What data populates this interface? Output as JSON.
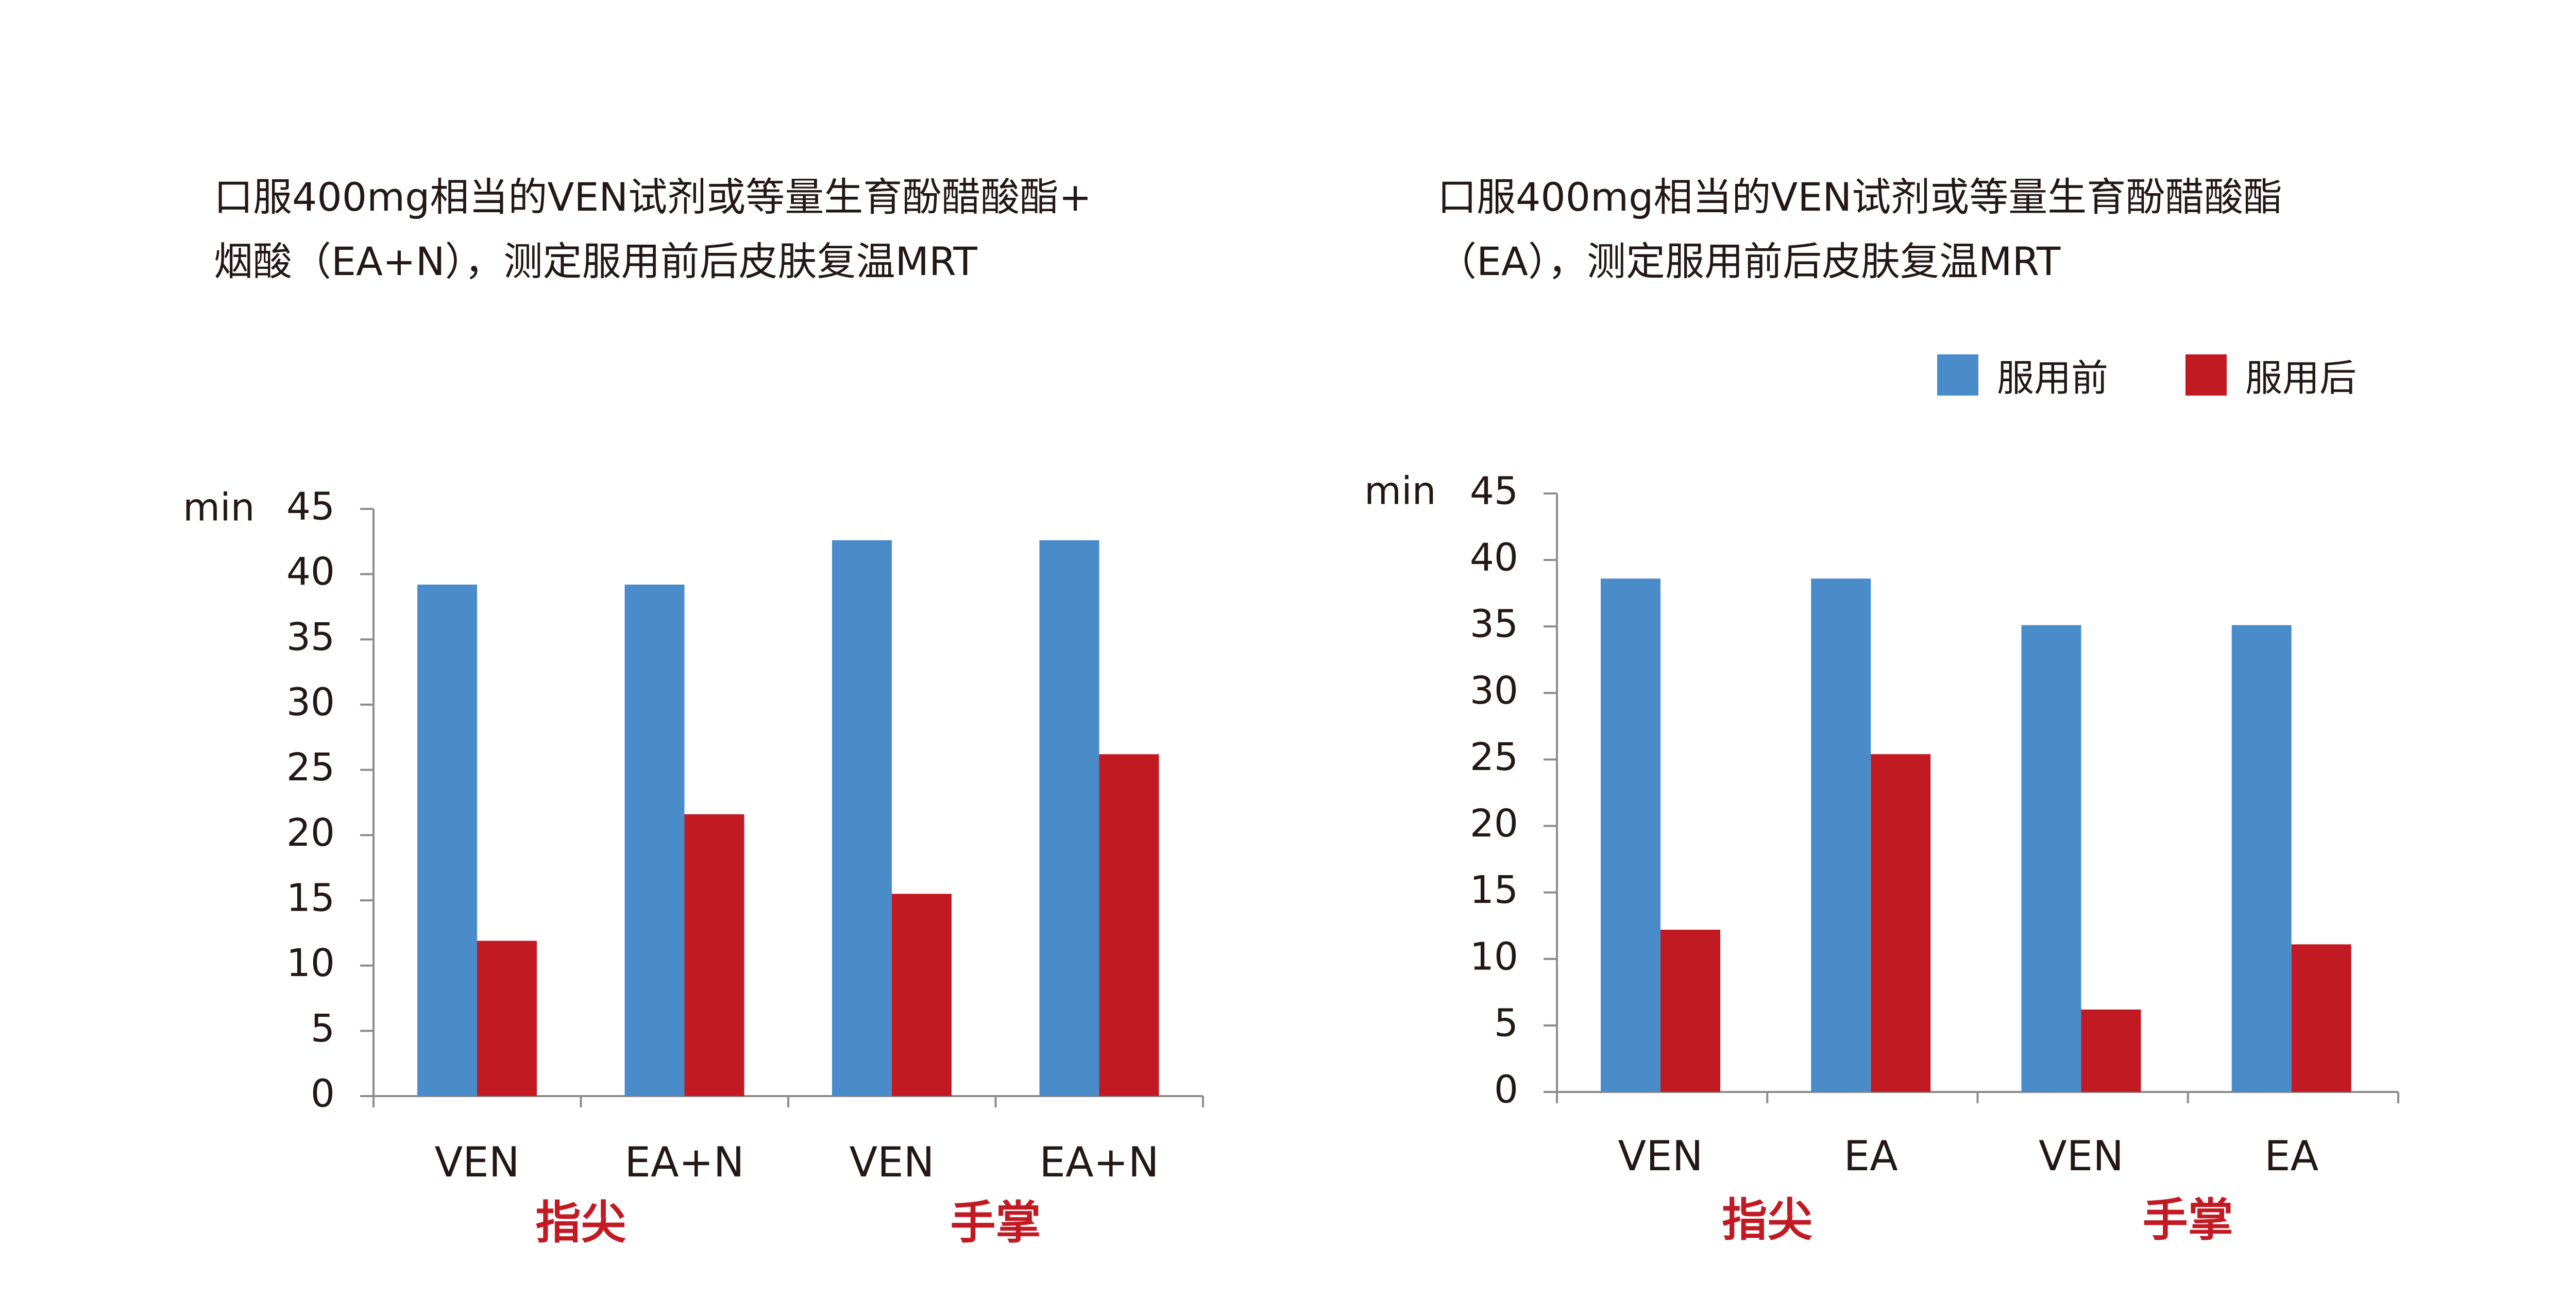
{
  "legend": {
    "before": "服用前",
    "after": "服用后",
    "before_color": "#4a8cca",
    "after_color": "#c21a23"
  },
  "chart_data": [
    {
      "type": "bar",
      "title_lines": [
        "口服400mg相当的VEN试剂或等量生育酚醋酸酯+",
        "烟酸（EA+N），测定服用前后皮肤复温MRT"
      ],
      "ylabel": "min",
      "ylim": [
        0,
        45
      ],
      "yticks": [
        0,
        5,
        10,
        15,
        20,
        25,
        30,
        35,
        40,
        45
      ],
      "categories": [
        "VEN",
        "EA+N",
        "VEN",
        "EA+N"
      ],
      "groups": [
        {
          "label": "指尖",
          "span": [
            0,
            1
          ]
        },
        {
          "label": "手掌",
          "span": [
            2,
            3
          ]
        }
      ],
      "series": [
        {
          "name": "服用前",
          "values": [
            39.2,
            39.2,
            42.6,
            42.6
          ]
        },
        {
          "name": "服用后",
          "values": [
            11.9,
            21.6,
            15.5,
            26.2
          ]
        }
      ]
    },
    {
      "type": "bar",
      "title_lines": [
        "口服400mg相当的VEN试剂或等量生育酚醋酸酯",
        "（EA），测定服用前后皮肤复温MRT"
      ],
      "ylabel": "min",
      "ylim": [
        0,
        45
      ],
      "yticks": [
        0,
        5,
        10,
        15,
        20,
        25,
        30,
        35,
        40,
        45
      ],
      "categories": [
        "VEN",
        "EA",
        "VEN",
        "EA"
      ],
      "groups": [
        {
          "label": "指尖",
          "span": [
            0,
            1
          ]
        },
        {
          "label": "手掌",
          "span": [
            2,
            3
          ]
        }
      ],
      "series": [
        {
          "name": "服用前",
          "values": [
            38.6,
            38.6,
            35.1,
            35.1
          ]
        },
        {
          "name": "服用后",
          "values": [
            12.2,
            25.4,
            6.2,
            11.1
          ]
        }
      ]
    }
  ]
}
